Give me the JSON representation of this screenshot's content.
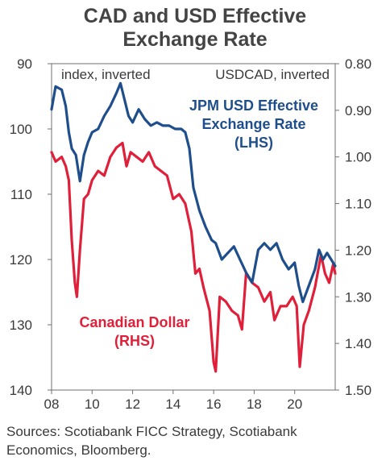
{
  "title_line1": "CAD and USD Effective",
  "title_line2": "Exchange Rate",
  "source_line1": "Sources: Scotiabank FICC Strategy, Scotiabank",
  "source_line2": "Economics, Bloomberg.",
  "chart_data": {
    "type": "line",
    "left_axis_label": "index, inverted",
    "right_axis_label": "USDCAD, inverted",
    "x_ticks": [
      "08",
      "10",
      "12",
      "14",
      "16",
      "18",
      "20"
    ],
    "left_ticks": [
      "90",
      "100",
      "110",
      "120",
      "130",
      "140"
    ],
    "right_ticks": [
      "0.80",
      "0.90",
      "1.00",
      "1.10",
      "1.20",
      "1.30",
      "1.40",
      "1.50"
    ],
    "xlim": [
      2008.0,
      2022.0
    ],
    "left_ylim": [
      90,
      140
    ],
    "right_ylim": [
      0.8,
      1.5
    ],
    "left_inverted": true,
    "right_inverted": true,
    "series": [
      {
        "name": "JPM USD Effective Exchange Rate (LHS)",
        "label_lines": [
          "JPM USD Effective",
          "Exchange Rate",
          "(LHS)"
        ],
        "axis": "left",
        "color": "#1f4e8c",
        "x": [
          2008.0,
          2008.2,
          2008.5,
          2008.7,
          2008.85,
          2009.0,
          2009.2,
          2009.4,
          2009.6,
          2009.8,
          2010.0,
          2010.3,
          2010.6,
          2010.9,
          2011.2,
          2011.4,
          2011.6,
          2011.8,
          2012.0,
          2012.3,
          2012.6,
          2012.9,
          2013.2,
          2013.5,
          2013.8,
          2014.1,
          2014.4,
          2014.6,
          2014.8,
          2015.0,
          2015.3,
          2015.6,
          2015.9,
          2016.1,
          2016.4,
          2016.7,
          2017.0,
          2017.3,
          2017.6,
          2017.9,
          2018.2,
          2018.5,
          2018.8,
          2019.1,
          2019.4,
          2019.7,
          2020.0,
          2020.2,
          2020.4,
          2020.7,
          2021.0,
          2021.2,
          2021.4,
          2021.6,
          2021.8,
          2022.0
        ],
        "y": [
          97.0,
          93.5,
          94.0,
          96.5,
          100.5,
          103.0,
          104.0,
          108.0,
          104.0,
          102.0,
          100.5,
          100.0,
          98.0,
          96.5,
          94.5,
          93.0,
          95.5,
          98.0,
          99.0,
          97.0,
          98.5,
          99.5,
          99.0,
          99.5,
          99.5,
          100.0,
          100.0,
          100.5,
          103.0,
          109.0,
          112.5,
          115.0,
          117.0,
          117.5,
          120.0,
          119.0,
          118.0,
          120.0,
          122.0,
          123.5,
          118.5,
          117.5,
          118.5,
          117.5,
          120.0,
          121.5,
          120.5,
          124.0,
          126.5,
          124.0,
          121.5,
          118.5,
          120.0,
          119.0,
          120.0,
          121.0
        ]
      },
      {
        "name": "Canadian Dollar (RHS)",
        "label_lines": [
          "Canadian Dollar",
          "(RHS)"
        ],
        "axis": "right",
        "color": "#e0203a",
        "x": [
          2008.0,
          2008.2,
          2008.5,
          2008.7,
          2008.85,
          2009.0,
          2009.15,
          2009.25,
          2009.4,
          2009.6,
          2009.8,
          2010.0,
          2010.3,
          2010.6,
          2010.9,
          2011.2,
          2011.5,
          2011.7,
          2011.9,
          2012.2,
          2012.5,
          2012.8,
          2013.1,
          2013.4,
          2013.7,
          2014.0,
          2014.3,
          2014.6,
          2014.9,
          2015.1,
          2015.3,
          2015.5,
          2015.8,
          2016.0,
          2016.1,
          2016.3,
          2016.6,
          2016.9,
          2017.2,
          2017.4,
          2017.6,
          2017.9,
          2018.2,
          2018.5,
          2018.8,
          2019.0,
          2019.3,
          2019.6,
          2019.9,
          2020.1,
          2020.25,
          2020.45,
          2020.7,
          2021.0,
          2021.3,
          2021.5,
          2021.7,
          2021.9,
          2022.0
        ],
        "y": [
          0.99,
          1.01,
          1.0,
          1.02,
          1.05,
          1.18,
          1.27,
          1.3,
          1.2,
          1.09,
          1.08,
          1.05,
          1.03,
          1.04,
          1.0,
          0.98,
          0.97,
          1.02,
          0.99,
          1.0,
          1.01,
          0.99,
          1.02,
          1.03,
          1.04,
          1.09,
          1.08,
          1.1,
          1.16,
          1.25,
          1.24,
          1.28,
          1.33,
          1.44,
          1.46,
          1.3,
          1.31,
          1.33,
          1.34,
          1.37,
          1.25,
          1.27,
          1.28,
          1.31,
          1.29,
          1.35,
          1.32,
          1.32,
          1.3,
          1.32,
          1.45,
          1.36,
          1.33,
          1.28,
          1.21,
          1.25,
          1.27,
          1.23,
          1.25
        ]
      }
    ]
  }
}
